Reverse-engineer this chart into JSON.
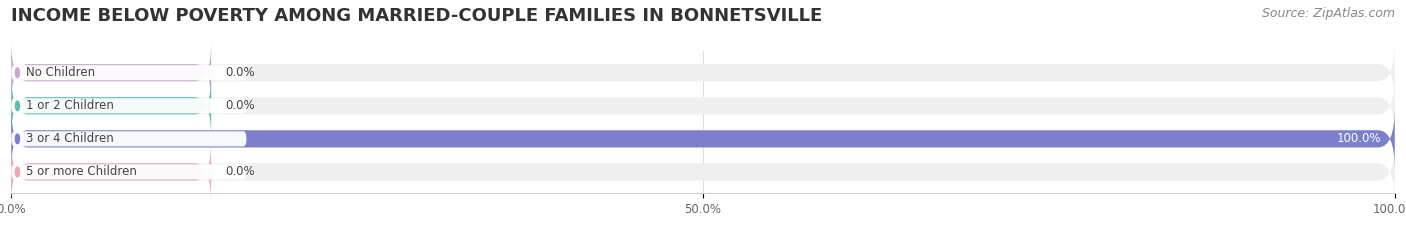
{
  "title": "INCOME BELOW POVERTY AMONG MARRIED-COUPLE FAMILIES IN BONNETSVILLE",
  "source": "Source: ZipAtlas.com",
  "categories": [
    "No Children",
    "1 or 2 Children",
    "3 or 4 Children",
    "5 or more Children"
  ],
  "values": [
    0.0,
    0.0,
    100.0,
    0.0
  ],
  "bar_colors": [
    "#c9a8c8",
    "#5bbfb0",
    "#7b7fcc",
    "#f4a0b5"
  ],
  "bar_bg_color": "#efefef",
  "label_bg_color": "#ffffff",
  "label_text_color": "#444444",
  "value_label_color": "#444444",
  "value_label_inside_color": "#ffffff",
  "xlim": [
    0,
    100
  ],
  "xticks": [
    0.0,
    50.0,
    100.0
  ],
  "xtick_labels": [
    "0.0%",
    "50.0%",
    "100.0%"
  ],
  "title_fontsize": 13,
  "source_fontsize": 9,
  "bar_height": 0.52,
  "figsize": [
    14.06,
    2.33
  ],
  "dpi": 100
}
